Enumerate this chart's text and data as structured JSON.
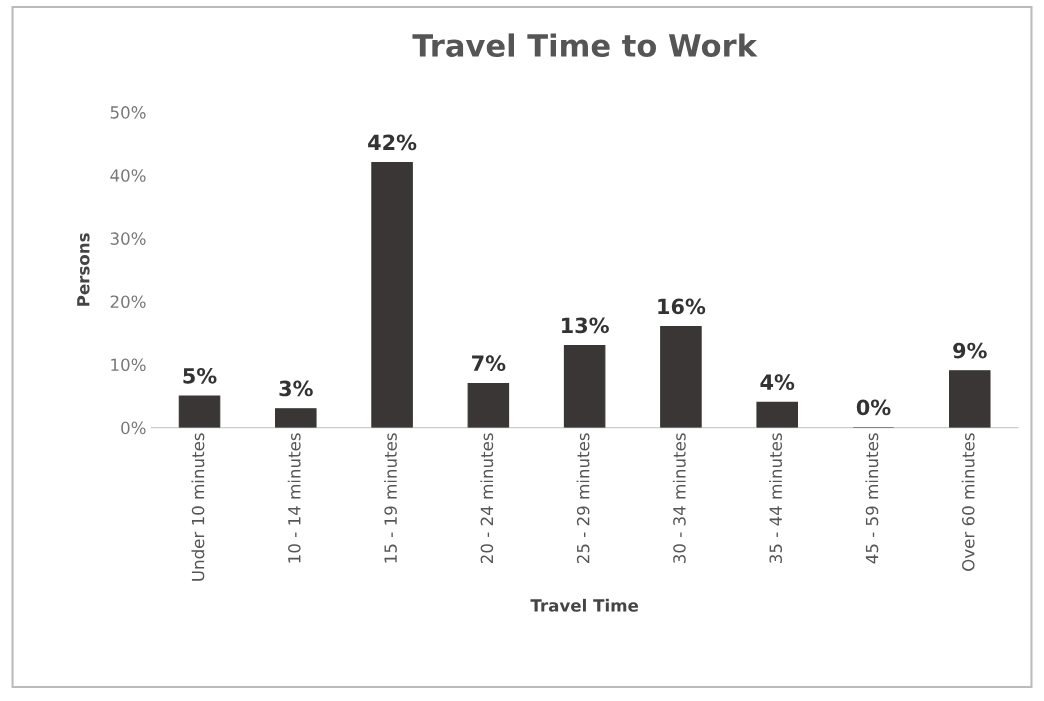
{
  "chart_data": {
    "type": "bar",
    "title": "Travel Time to Work",
    "xlabel": "Travel Time",
    "ylabel": "Persons",
    "categories": [
      "Under 10 minutes",
      "10 - 14 minutes",
      "15 - 19 minutes",
      "20 - 24 minutes",
      "25 - 29 minutes",
      "30 - 34 minutes",
      "35 - 44 minutes",
      "45 - 59 minutes",
      "Over 60 minutes"
    ],
    "values": [
      5,
      3,
      42,
      7,
      13,
      16,
      4,
      0,
      9
    ],
    "value_labels": [
      "5%",
      "3%",
      "42%",
      "7%",
      "13%",
      "16%",
      "4%",
      "0%",
      "9%"
    ],
    "color": "#3a3636",
    "ylim": [
      0,
      50
    ],
    "yticks": [
      {
        "value": 0,
        "label": "0%"
      },
      {
        "value": 10,
        "label": "10%"
      },
      {
        "value": 20,
        "label": "20%"
      },
      {
        "value": 30,
        "label": "30%"
      },
      {
        "value": 40,
        "label": "40%"
      },
      {
        "value": 50,
        "label": "50%"
      }
    ],
    "grid": false,
    "legend": false
  }
}
